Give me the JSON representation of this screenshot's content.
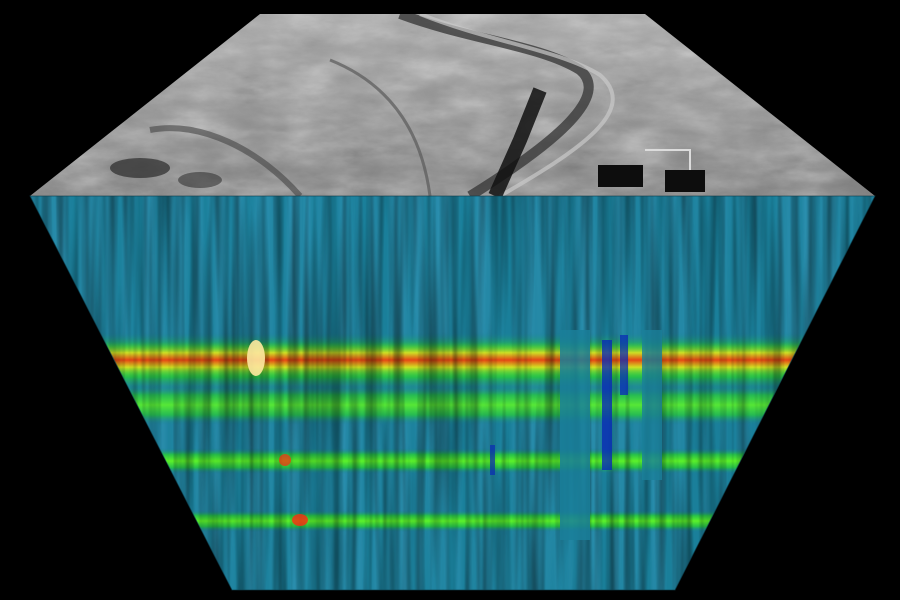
{
  "scene": {
    "subject": "hyperspectral-data-cube",
    "background_color": "#000000",
    "top_face": {
      "content": "grayscale-aerial-image",
      "tone_light": "#b9b9b9",
      "tone_mid": "#8e8e8e",
      "tone_dark": "#1a1a1a"
    },
    "front_face": {
      "content": "spectral-intensity-heatmap",
      "base_color": "#1a7f9a",
      "colormap": [
        "#0a2bb5",
        "#1a7f9a",
        "#27c14a",
        "#5cf22a",
        "#e8e020",
        "#ff2a10"
      ],
      "band_levels": [
        0.78,
        0.55,
        0.62,
        0.5
      ]
    }
  }
}
